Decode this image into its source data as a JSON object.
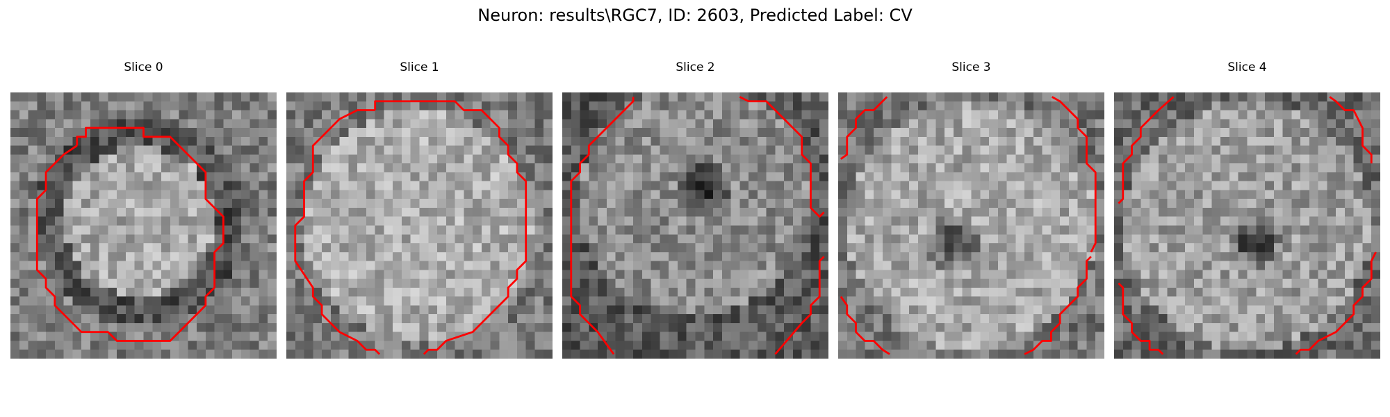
{
  "figure": {
    "title": "Neuron: results\\RGC7, ID: 2603, Predicted Label: CV"
  },
  "slices": [
    {
      "label": "Slice 0",
      "blob": "dark ring around bright disk",
      "seed": 11
    },
    {
      "label": "Slice 1",
      "blob": "bright disk",
      "seed": 23
    },
    {
      "label": "Slice 2",
      "blob": "dark center spot (upper)",
      "seed": 37
    },
    {
      "label": "Slice 3",
      "blob": "dark center spot",
      "seed": 51
    },
    {
      "label": "Slice 4",
      "blob": "dark center spot (strong)",
      "seed": 67
    }
  ],
  "colors": {
    "contour": "#ff0000",
    "background": "#ffffff"
  }
}
